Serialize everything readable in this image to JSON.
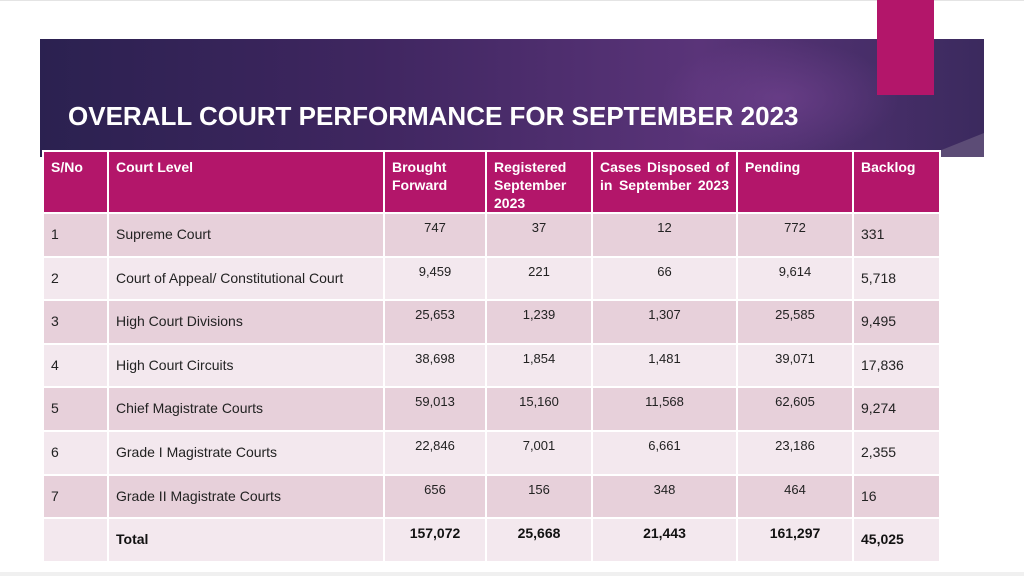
{
  "slide": {
    "title": "OVERALL COURT PERFORMANCE FOR SEPTEMBER 2023",
    "colors": {
      "accent": "#b3166a",
      "banner": "#3f2660",
      "row_dark": "#e7d0da",
      "row_light": "#f3e8ee"
    }
  },
  "table": {
    "headers": [
      "S/No",
      "Court Level",
      "Brought Forward",
      "Registered September 2023",
      "Cases Disposed of in September 2023",
      "Pending",
      "Backlog"
    ],
    "rows": [
      {
        "sno": "1",
        "level": "Supreme Court",
        "brought_forward": "747",
        "registered": "37",
        "disposed": "12",
        "pending": "772",
        "backlog": "331"
      },
      {
        "sno": "2",
        "level": "Court of Appeal/ Constitutional Court",
        "brought_forward": "9,459",
        "registered": "221",
        "disposed": "66",
        "pending": "9,614",
        "backlog": "5,718"
      },
      {
        "sno": "3",
        "level": "High Court Divisions",
        "brought_forward": "25,653",
        "registered": "1,239",
        "disposed": "1,307",
        "pending": "25,585",
        "backlog": "9,495"
      },
      {
        "sno": "4",
        "level": "High Court Circuits",
        "brought_forward": "38,698",
        "registered": "1,854",
        "disposed": "1,481",
        "pending": "39,071",
        "backlog": "17,836"
      },
      {
        "sno": "5",
        "level": "Chief Magistrate Courts",
        "brought_forward": "59,013",
        "registered": "15,160",
        "disposed": "11,568",
        "pending": "62,605",
        "backlog": "9,274"
      },
      {
        "sno": "6",
        "level": "Grade I Magistrate Courts",
        "brought_forward": "22,846",
        "registered": "7,001",
        "disposed": "6,661",
        "pending": "23,186",
        "backlog": "2,355"
      },
      {
        "sno": "7",
        "level": "Grade II Magistrate Courts",
        "brought_forward": "656",
        "registered": "156",
        "disposed": "348",
        "pending": "464",
        "backlog": "16"
      }
    ],
    "total": {
      "sno": "",
      "level": "Total",
      "brought_forward": "157,072",
      "registered": "25,668",
      "disposed": "21,443",
      "pending": "161,297",
      "backlog": "45,025"
    }
  }
}
